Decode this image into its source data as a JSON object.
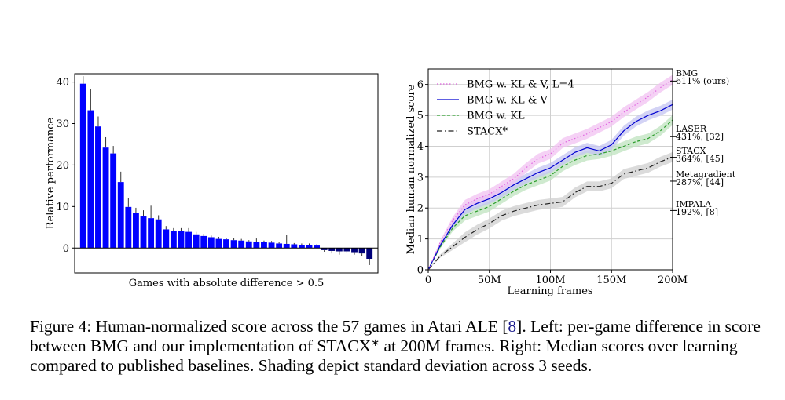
{
  "figure": {
    "left_chart": {
      "type": "bar",
      "xlabel": "Games with absolute difference > 0.5",
      "ylabel": "Relative performance",
      "ylim": [
        -6,
        42
      ],
      "yticks": [
        0,
        10,
        20,
        30,
        40
      ],
      "grid": false,
      "values": [
        39.6,
        33.2,
        29.3,
        24.2,
        22.8,
        15.9,
        9.9,
        8.5,
        7.6,
        7.2,
        6.9,
        4.5,
        4.2,
        4.1,
        3.9,
        3.3,
        2.9,
        2.6,
        2.2,
        2.1,
        1.9,
        1.8,
        1.6,
        1.5,
        1.4,
        1.3,
        1.1,
        1.0,
        0.9,
        0.8,
        0.7,
        0.6,
        -0.5,
        -0.7,
        -0.8,
        -0.8,
        -1.0,
        -1.3,
        -2.6
      ],
      "errors": [
        1.8,
        5.2,
        2.4,
        2.5,
        1.8,
        2.5,
        2.2,
        1.2,
        1.5,
        3.0,
        1.0,
        0.8,
        0.6,
        0.7,
        0.9,
        0.6,
        0.5,
        0.4,
        0.5,
        0.3,
        0.5,
        0.4,
        0.3,
        0.8,
        0.4,
        0.4,
        0.4,
        2.2,
        0.3,
        0.3,
        0.4,
        0.3,
        0.4,
        0.6,
        0.8,
        0.5,
        0.6,
        0.7,
        1.5
      ],
      "colors": {
        "positive": "#0000ff",
        "negative": "#00007a",
        "error": "#333333"
      }
    },
    "right_chart": {
      "type": "line",
      "xlabel": "Learning frames",
      "ylabel": "Median human normalized score",
      "xlim": [
        0,
        200
      ],
      "ylim": [
        0,
        6.5
      ],
      "xticks": [
        0,
        50,
        100,
        150,
        200
      ],
      "xtick_labels": [
        "0",
        "50M",
        "100M",
        "150M",
        "200M"
      ],
      "yticks": [
        0,
        1,
        2,
        3,
        4,
        5,
        6
      ],
      "grid": true,
      "legend_position": "top-left",
      "x": [
        0,
        10,
        20,
        30,
        40,
        50,
        60,
        70,
        80,
        90,
        100,
        110,
        120,
        130,
        140,
        150,
        160,
        170,
        180,
        190,
        200
      ],
      "series": [
        {
          "name": "BMG w. KL & V, L=4",
          "style": "dotted",
          "color": "#e066e0",
          "band": "#f2c2f2",
          "values": [
            0,
            0.9,
            1.6,
            2.1,
            2.3,
            2.45,
            2.7,
            2.95,
            3.3,
            3.6,
            3.75,
            4.1,
            4.25,
            4.4,
            4.6,
            4.8,
            5.1,
            5.35,
            5.6,
            5.9,
            6.15
          ]
        },
        {
          "name": "BMG w. KL & V",
          "style": "solid",
          "color": "#0000d0",
          "band": "#c4c4f2",
          "values": [
            0,
            0.8,
            1.45,
            1.95,
            2.15,
            2.3,
            2.5,
            2.75,
            2.95,
            3.15,
            3.3,
            3.55,
            3.8,
            3.95,
            3.85,
            4.05,
            4.5,
            4.8,
            5.0,
            5.15,
            5.35
          ]
        },
        {
          "name": "BMG w. KL",
          "style": "dashed",
          "color": "#2a9d2a",
          "band": "#bfe3bf",
          "values": [
            0,
            0.75,
            1.35,
            1.75,
            1.9,
            2.05,
            2.3,
            2.55,
            2.75,
            2.9,
            3.05,
            3.35,
            3.55,
            3.7,
            3.75,
            3.85,
            4.0,
            4.15,
            4.25,
            4.5,
            4.85
          ]
        },
        {
          "name": "STACX*",
          "style": "dashdot",
          "color": "#222222",
          "band": "#cfcfcf",
          "values": [
            0,
            0.45,
            0.75,
            1.05,
            1.3,
            1.5,
            1.75,
            1.9,
            2.0,
            2.1,
            2.15,
            2.2,
            2.5,
            2.7,
            2.7,
            2.8,
            3.1,
            3.2,
            3.3,
            3.5,
            3.65
          ]
        }
      ],
      "baselines": [
        {
          "name": "BMG",
          "label": "611% (ours)",
          "value": 6.11
        },
        {
          "name": "LASER",
          "label": "431%, [32]",
          "value": 4.31
        },
        {
          "name": "STACX",
          "label": "364%, [45]",
          "value": 3.64
        },
        {
          "name": "Metagradient",
          "label": "287%, [44]",
          "value": 2.87
        },
        {
          "name": "IMPALA",
          "label": "192%, [8]",
          "value": 1.92
        }
      ]
    }
  },
  "caption": {
    "lead": "Figure 4: Human-normalized score across the 57 games in Atari ALE [",
    "ref1": "8",
    "mid": "]. Left: per-game difference in score between BMG and our implementation of STACX",
    "sup": "∗",
    "tail": " at 200M frames. Right: Median scores over learning compared to published baselines. Shading depict standard deviation across 3 seeds."
  }
}
